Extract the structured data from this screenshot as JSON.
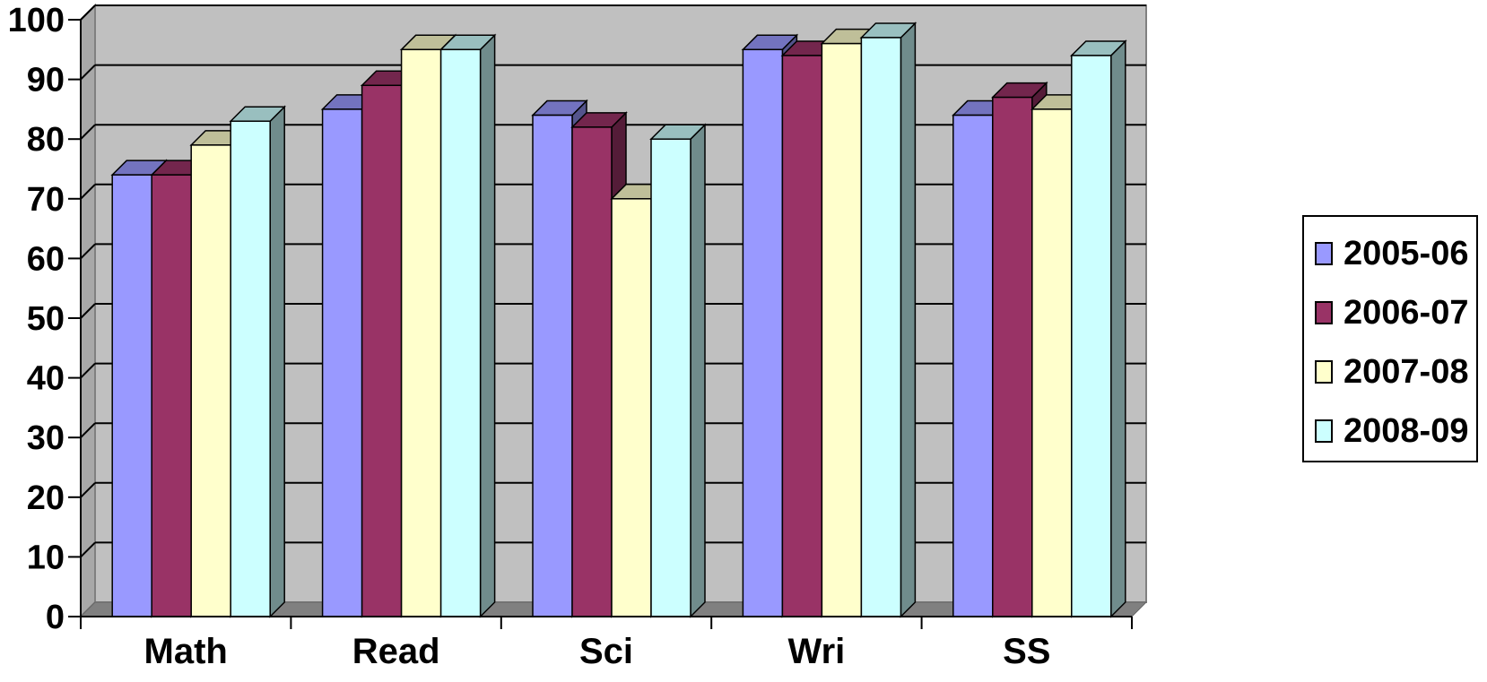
{
  "chart_data": {
    "type": "bar",
    "title": "",
    "xlabel": "",
    "ylabel": "",
    "categories": [
      "Math",
      "Read",
      "Sci",
      "Wri",
      "SS"
    ],
    "series": [
      {
        "name": "2005-06",
        "values": [
          74,
          85,
          84,
          95,
          84
        ],
        "color": "#9999FF"
      },
      {
        "name": "2006-07",
        "values": [
          74,
          89,
          82,
          94,
          87
        ],
        "color": "#993366"
      },
      {
        "name": "2007-08",
        "values": [
          79,
          95,
          70,
          96,
          85
        ],
        "color": "#FFFFCC"
      },
      {
        "name": "2008-09",
        "values": [
          83,
          95,
          80,
          97,
          94
        ],
        "color": "#CCFFFF"
      }
    ],
    "ylim": [
      0,
      100
    ],
    "yticks": [
      "0",
      "10",
      "20",
      "30",
      "40",
      "50",
      "60",
      "70",
      "80",
      "90",
      "100"
    ],
    "grid": true,
    "legend_position": "right",
    "style": "3d-clustered-column",
    "plot_background": "#C0C0C0"
  }
}
